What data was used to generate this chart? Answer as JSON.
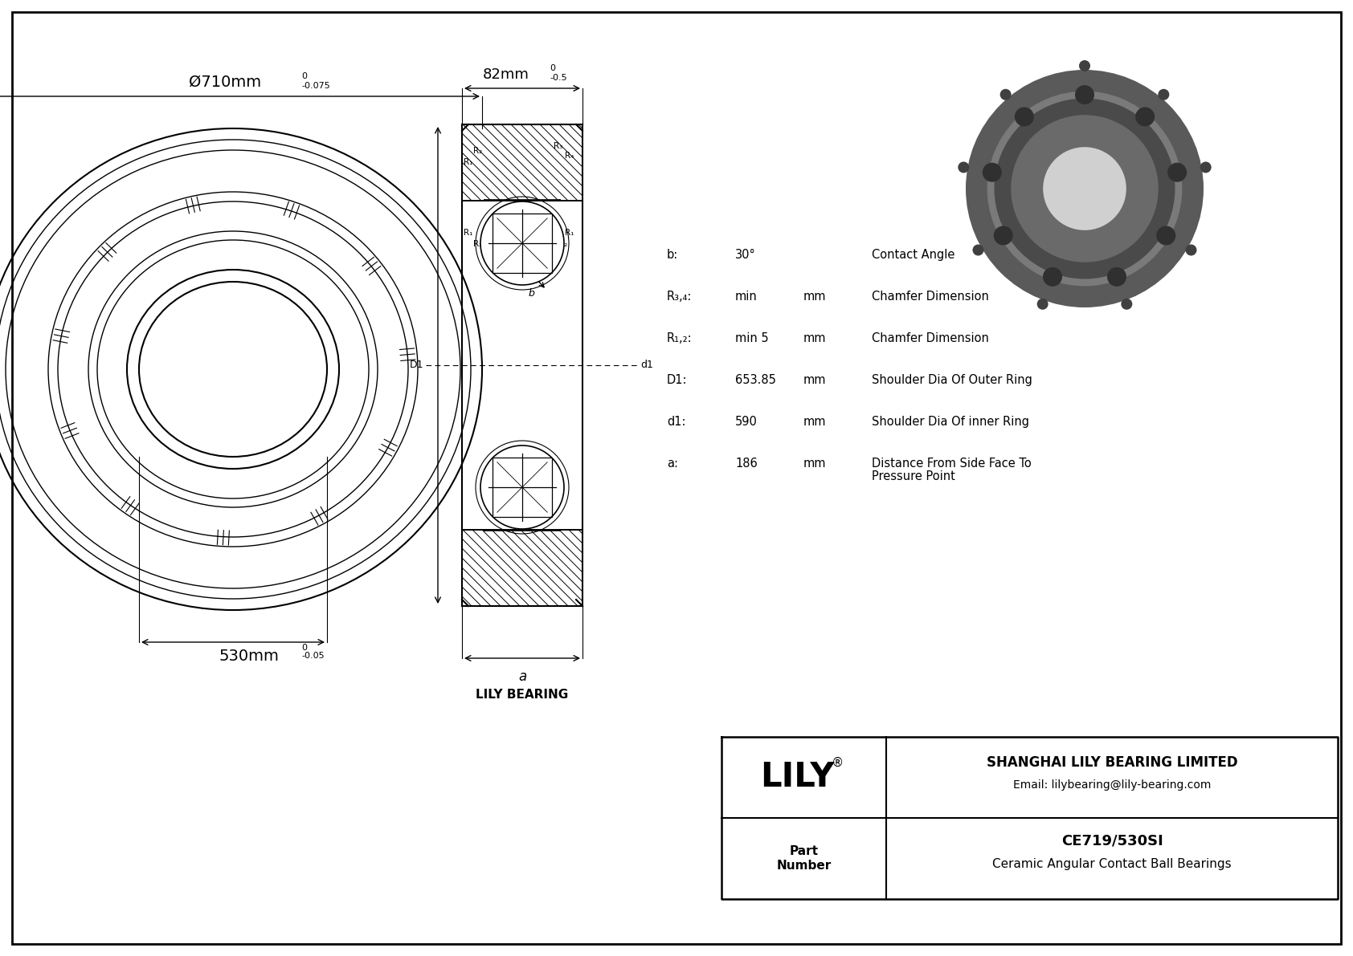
{
  "bg_color": "#ffffff",
  "border_color": "#000000",
  "line_color": "#000000",
  "outer_dia_label": "Ø710mm",
  "outer_dia_tol_top": "0",
  "outer_dia_tol_bot": "-0.075",
  "inner_dia_label": "530mm",
  "inner_dia_tol_top": "0",
  "inner_dia_tol_bot": "-0.05",
  "width_label": "82mm",
  "width_tol_top": "0",
  "width_tol_bot": "-0.5",
  "specs": [
    {
      "param": "b:",
      "value": "30°",
      "unit": "",
      "desc": "Contact Angle"
    },
    {
      "param": "R₃,₄:",
      "value": "min",
      "unit": "mm",
      "desc": "Chamfer Dimension"
    },
    {
      "param": "R₁,₂:",
      "value": "min 5",
      "unit": "mm",
      "desc": "Chamfer Dimension"
    },
    {
      "param": "D1:",
      "value": "653.85",
      "unit": "mm",
      "desc": "Shoulder Dia Of Outer Ring"
    },
    {
      "param": "d1:",
      "value": "590",
      "unit": "mm",
      "desc": "Shoulder Dia Of inner Ring"
    },
    {
      "param": "a:",
      "value": "186",
      "unit": "mm",
      "desc": "Distance From Side Face To\nPressure Point"
    }
  ],
  "lily_bearing_label": "LILY BEARING",
  "company_name": "SHANGHAI LILY BEARING LIMITED",
  "email": "Email: lilybearing@lily-bearing.com",
  "part_label": "Part\nNumber",
  "part_number": "CE719/530SI",
  "part_desc": "Ceramic Angular Contact Ball Bearings"
}
